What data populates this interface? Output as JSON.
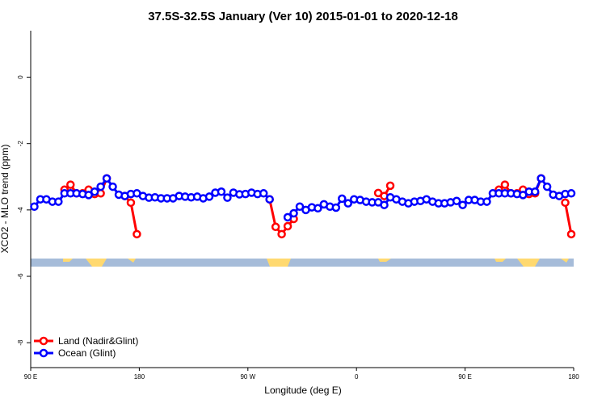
{
  "chart_data": {
    "type": "line",
    "title": "37.5S-32.5S January (Ver 10)   2015-01-01 to 2020-12-18",
    "x_label": "Longitude (deg E)",
    "y_label": "XCO2 - MLO trend (ppm)",
    "x": [
      93,
      98,
      103,
      108,
      113,
      118,
      123,
      128,
      133,
      138,
      143,
      148,
      153,
      158,
      163,
      168,
      173,
      178,
      183,
      188,
      193,
      198,
      203,
      208,
      213,
      218,
      223,
      228,
      233,
      238,
      243,
      248,
      253,
      258,
      263,
      268,
      273,
      278,
      283,
      288,
      293,
      298,
      303,
      308,
      313,
      318,
      323,
      328,
      333,
      338,
      343,
      348,
      353,
      358,
      363,
      368,
      373,
      378,
      383,
      388,
      393,
      398,
      403,
      408,
      413,
      418,
      423,
      428,
      433,
      438,
      443,
      448,
      453,
      458,
      463,
      468,
      473,
      478,
      483,
      488,
      493,
      498,
      503,
      508,
      513,
      518,
      523,
      528,
      533,
      538
    ],
    "series": [
      {
        "name": "Land (Nadir&Glint)",
        "color": "#ff0000",
        "values": [
          null,
          null,
          null,
          null,
          null,
          -3.39,
          -3.24,
          -3.5,
          -3.5,
          -3.39,
          -3.52,
          -3.5,
          -3.05,
          null,
          null,
          -3.58,
          -3.78,
          -4.73,
          null,
          null,
          null,
          null,
          null,
          null,
          null,
          null,
          null,
          null,
          null,
          null,
          null,
          null,
          null,
          null,
          null,
          null,
          null,
          null,
          null,
          -3.68,
          -4.51,
          -4.73,
          -4.49,
          -4.27,
          null,
          null,
          null,
          null,
          null,
          null,
          null,
          null,
          null,
          null,
          null,
          null,
          null,
          -3.49,
          -3.58,
          -3.27,
          null,
          null,
          null,
          null,
          null,
          null,
          null,
          null,
          null,
          null,
          null,
          null,
          null,
          null,
          null,
          null,
          null,
          -3.39,
          -3.24,
          -3.5,
          -3.5,
          -3.39,
          -3.52,
          -3.5,
          -3.05,
          null,
          null,
          null,
          -3.78,
          -4.73
        ]
      },
      {
        "name": "Ocean (Glint)",
        "color": "#0000ff",
        "values": [
          -3.9,
          -3.68,
          -3.68,
          -3.75,
          -3.75,
          -3.5,
          -3.5,
          -3.5,
          -3.52,
          -3.55,
          -3.45,
          -3.3,
          -3.05,
          -3.3,
          -3.54,
          -3.58,
          -3.52,
          -3.5,
          -3.58,
          -3.63,
          -3.62,
          -3.65,
          -3.65,
          -3.65,
          -3.58,
          -3.6,
          -3.62,
          -3.6,
          -3.65,
          -3.6,
          -3.48,
          -3.45,
          -3.63,
          -3.48,
          -3.53,
          -3.52,
          -3.48,
          -3.52,
          -3.5,
          -3.68,
          null,
          null,
          -4.22,
          -4.1,
          -3.9,
          -4.0,
          -3.92,
          -3.95,
          -3.83,
          -3.9,
          -3.93,
          -3.66,
          -3.8,
          -3.68,
          -3.7,
          -3.75,
          -3.77,
          -3.77,
          -3.85,
          -3.62,
          -3.68,
          -3.75,
          -3.8,
          -3.75,
          -3.73,
          -3.68,
          -3.75,
          -3.8,
          -3.8,
          -3.77,
          -3.73,
          -3.85,
          -3.7,
          -3.7,
          -3.75,
          -3.75,
          -3.5,
          -3.5,
          -3.5,
          -3.5,
          -3.52,
          -3.55,
          -3.45,
          -3.45,
          -3.05,
          -3.3,
          -3.54,
          -3.58,
          -3.52,
          -3.5
        ]
      }
    ],
    "xlim": [
      90,
      540
    ],
    "xticks": [
      {
        "value": 90,
        "label": "90 E"
      },
      180,
      {
        "value": 270,
        "label": "90 W"
      },
      {
        "value": 360,
        "label": "0"
      },
      {
        "value": 450,
        "label": "90 E"
      },
      {
        "value": 540,
        "label": "180"
      }
    ],
    "ylim": [
      -8.75,
      1.4
    ],
    "yticks": [
      0,
      -2,
      -4,
      -6,
      -8
    ],
    "legend": "bottom-left"
  }
}
